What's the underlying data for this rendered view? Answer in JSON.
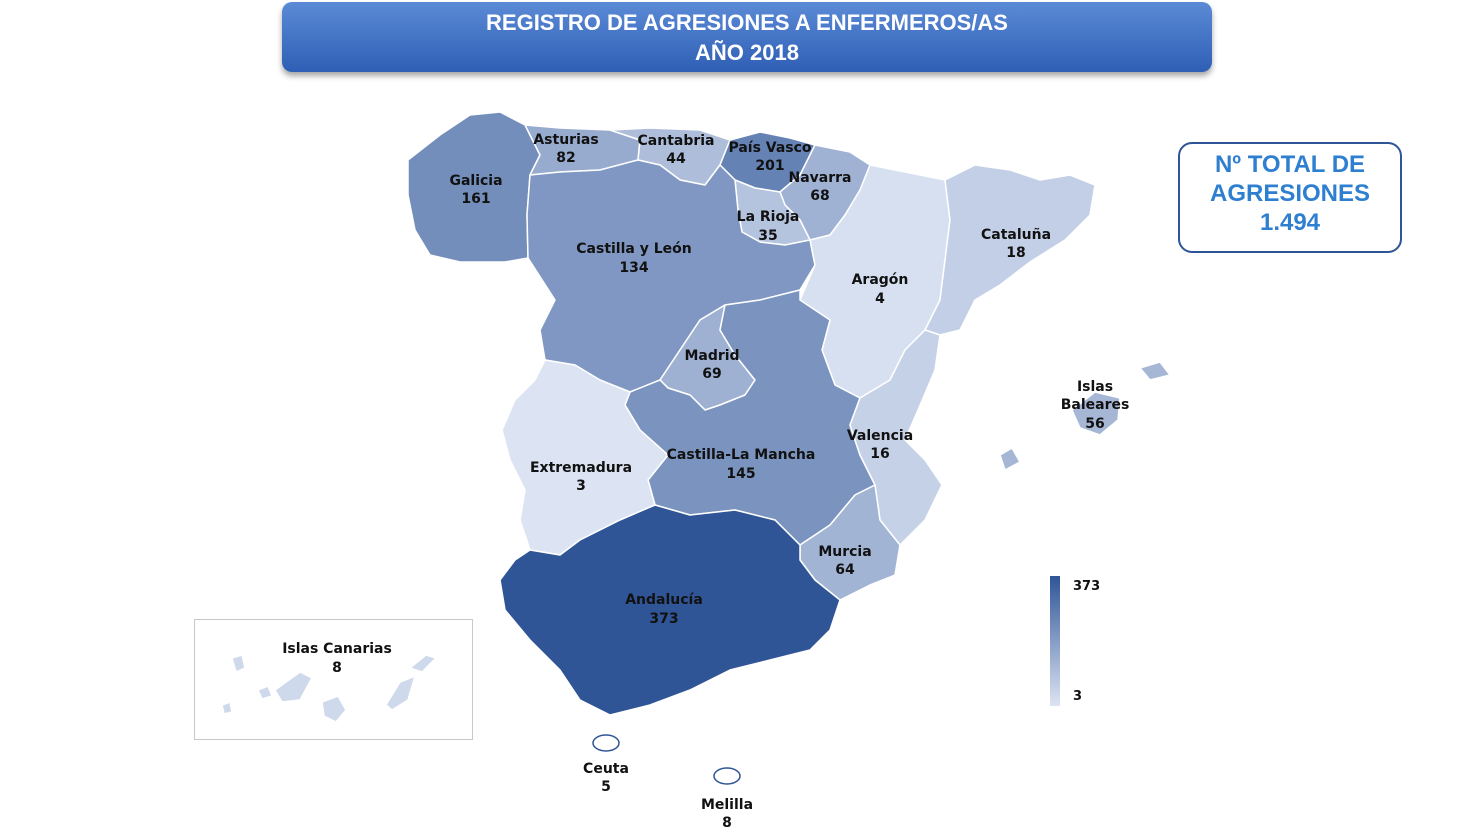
{
  "header": {
    "title_line1": "REGISTRO DE AGRESIONES A ENFERMEROS/AS",
    "title_line2": "AÑO 2018"
  },
  "total": {
    "line1": "Nº TOTAL DE",
    "line2": "AGRESIONES",
    "value": "1.494"
  },
  "legend": {
    "max": "373",
    "min": "3",
    "color_max": "#2f5597",
    "color_min": "#dce4f3"
  },
  "regions": [
    {
      "name": "Galicia",
      "value": "161"
    },
    {
      "name": "Asturias",
      "value": "82"
    },
    {
      "name": "Cantabria",
      "value": "44"
    },
    {
      "name": "País Vasco",
      "value": "201"
    },
    {
      "name": "Navarra",
      "value": "68"
    },
    {
      "name": "La Rioja",
      "value": "35"
    },
    {
      "name": "Cataluña",
      "value": "18"
    },
    {
      "name": "Castilla y León",
      "value": "134"
    },
    {
      "name": "Aragón",
      "value": "4"
    },
    {
      "name": "Madrid",
      "value": "69"
    },
    {
      "name": "Islas Baleares",
      "value": "56"
    },
    {
      "name": "Valencia",
      "value": "16"
    },
    {
      "name": "Castilla-La Mancha",
      "value": "145"
    },
    {
      "name": "Extremadura",
      "value": "3"
    },
    {
      "name": "Murcia",
      "value": "64"
    },
    {
      "name": "Andalucía",
      "value": "373"
    },
    {
      "name": "Islas Canarias",
      "value": "8"
    },
    {
      "name": "Ceuta",
      "value": "5"
    },
    {
      "name": "Melilla",
      "value": "8"
    }
  ]
}
